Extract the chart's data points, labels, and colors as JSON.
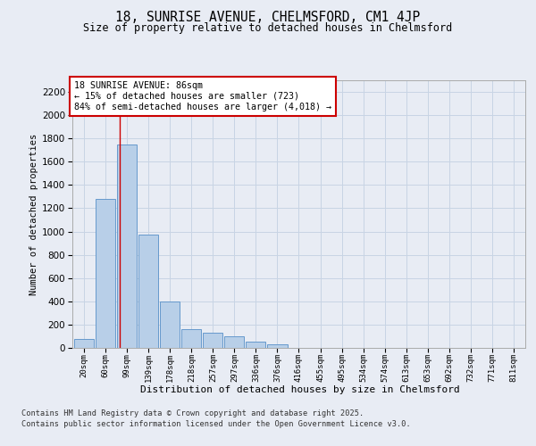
{
  "title_line1": "18, SUNRISE AVENUE, CHELMSFORD, CM1 4JP",
  "title_line2": "Size of property relative to detached houses in Chelmsford",
  "xlabel": "Distribution of detached houses by size in Chelmsford",
  "ylabel": "Number of detached properties",
  "categories": [
    "20sqm",
    "60sqm",
    "99sqm",
    "139sqm",
    "178sqm",
    "218sqm",
    "257sqm",
    "297sqm",
    "336sqm",
    "376sqm",
    "416sqm",
    "455sqm",
    "495sqm",
    "534sqm",
    "574sqm",
    "613sqm",
    "653sqm",
    "692sqm",
    "732sqm",
    "771sqm",
    "811sqm"
  ],
  "values": [
    75,
    1280,
    1750,
    970,
    400,
    160,
    130,
    100,
    55,
    30,
    0,
    0,
    0,
    0,
    0,
    0,
    0,
    0,
    0,
    0,
    0
  ],
  "bar_color": "#b8cfe8",
  "bar_edge_color": "#6699cc",
  "grid_color": "#c8d4e4",
  "background_color": "#e8ecf4",
  "annotation_text": "18 SUNRISE AVENUE: 86sqm\n← 15% of detached houses are smaller (723)\n84% of semi-detached houses are larger (4,018) →",
  "annotation_box_color": "#ffffff",
  "annotation_box_edge": "#cc0000",
  "ylim": [
    0,
    2300
  ],
  "yticks": [
    0,
    200,
    400,
    600,
    800,
    1000,
    1200,
    1400,
    1600,
    1800,
    2000,
    2200
  ],
  "footer_line1": "Contains HM Land Registry data © Crown copyright and database right 2025.",
  "footer_line2": "Contains public sector information licensed under the Open Government Licence v3.0."
}
